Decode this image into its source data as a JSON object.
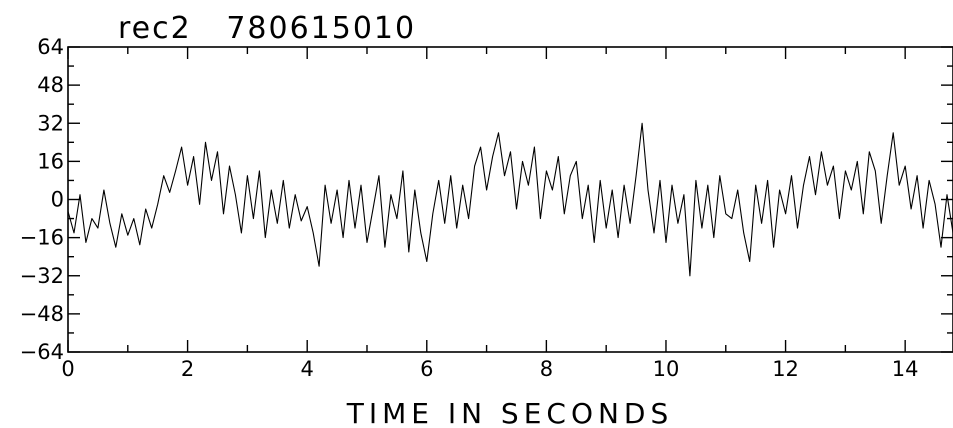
{
  "chart_data": {
    "type": "line",
    "title": "rec2   780615010",
    "xlabel": "TIME IN SECONDS",
    "ylabel": "",
    "xlim": [
      0,
      14.8
    ],
    "ylim": [
      -64,
      64
    ],
    "xticks": [
      0,
      2,
      4,
      6,
      8,
      10,
      12,
      14
    ],
    "yticks": [
      64,
      48,
      32,
      16,
      0,
      -16,
      -32,
      -48,
      -64
    ],
    "x_minor_step": 1,
    "y_minor_step": 8,
    "grid": false,
    "legend": "none",
    "line_color": "#000000",
    "series": [
      {
        "x_start": 0,
        "x_step": 0.1,
        "values": [
          -5,
          -14,
          2,
          -18,
          -8,
          -12,
          4,
          -10,
          -20,
          -6,
          -15,
          -8,
          -19,
          -4,
          -12,
          -2,
          10,
          3,
          12,
          22,
          6,
          18,
          -2,
          24,
          8,
          20,
          -6,
          14,
          2,
          -14,
          10,
          -8,
          12,
          -16,
          4,
          -10,
          8,
          -12,
          2,
          -9,
          -3,
          -14,
          -28,
          6,
          -10,
          4,
          -16,
          8,
          -12,
          6,
          -18,
          -4,
          10,
          -20,
          2,
          -8,
          12,
          -22,
          4,
          -14,
          -26,
          -6,
          8,
          -10,
          10,
          -12,
          6,
          -8,
          14,
          22,
          4,
          18,
          28,
          10,
          20,
          -4,
          16,
          6,
          22,
          -8,
          12,
          4,
          18,
          -6,
          10,
          16,
          -8,
          6,
          -18,
          8,
          -12,
          4,
          -16,
          6,
          -10,
          10,
          32,
          4,
          -14,
          8,
          -18,
          6,
          -10,
          2,
          -32,
          8,
          -12,
          6,
          -16,
          10,
          -6,
          -8,
          4,
          -14,
          -26,
          6,
          -10,
          8,
          -20,
          4,
          -6,
          10,
          -12,
          6,
          18,
          2,
          20,
          6,
          14,
          -8,
          12,
          4,
          16,
          -6,
          20,
          12,
          -10,
          10,
          28,
          6,
          14,
          -4,
          10,
          -12,
          8,
          -2,
          -20,
          2,
          -14,
          -6,
          10,
          4,
          -6
        ]
      }
    ]
  }
}
